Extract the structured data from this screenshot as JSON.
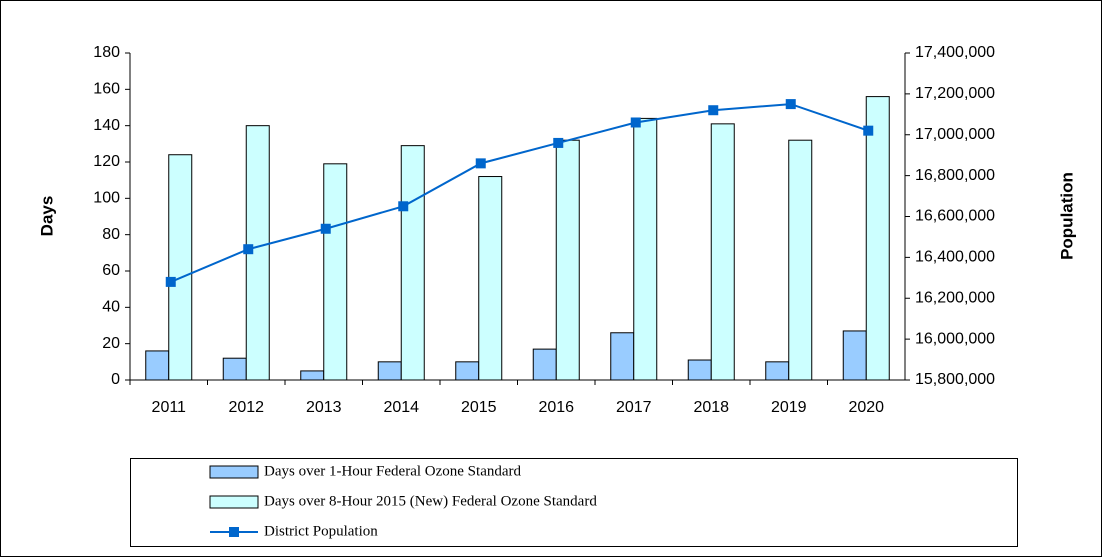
{
  "chart_data": {
    "type": "bar",
    "categories": [
      "2011",
      "2012",
      "2013",
      "2014",
      "2015",
      "2016",
      "2017",
      "2018",
      "2019",
      "2020"
    ],
    "series": [
      {
        "name": "Days over 1-Hour Federal Ozone Standard",
        "color": "#99ccff",
        "values": [
          16,
          12,
          5,
          10,
          10,
          17,
          26,
          11,
          10,
          27
        ]
      },
      {
        "name": "Days over 8-Hour 2015 (New) Federal Ozone Standard",
        "color": "#ccffff",
        "values": [
          124,
          140,
          119,
          129,
          112,
          132,
          144,
          141,
          132,
          156
        ]
      },
      {
        "name": "District Population",
        "color": "#0066cc",
        "type": "line",
        "axis": "y2",
        "values": [
          16280000,
          16440000,
          16540000,
          16650000,
          16860000,
          16960000,
          17060000,
          17120000,
          17150000,
          17020000
        ]
      }
    ],
    "ylabel": "Days",
    "y2label": "Population",
    "ylim": [
      0,
      180
    ],
    "yticks": [
      0,
      20,
      40,
      60,
      80,
      100,
      120,
      140,
      160,
      180
    ],
    "y2lim": [
      15800000,
      17400000
    ],
    "y2ticks": [
      {
        "value": 15800000,
        "label": "15,800,000"
      },
      {
        "value": 16000000,
        "label": "16,000,000"
      },
      {
        "value": 16200000,
        "label": "16,200,000"
      },
      {
        "value": 16400000,
        "label": "16,400,000"
      },
      {
        "value": 16600000,
        "label": "16,600,000"
      },
      {
        "value": 16800000,
        "label": "16,800,000"
      },
      {
        "value": 17000000,
        "label": "17,000,000"
      },
      {
        "value": 17200000,
        "label": "17,200,000"
      },
      {
        "value": 17400000,
        "label": "17,400,000"
      }
    ],
    "grid": false,
    "legend": "bottom"
  }
}
